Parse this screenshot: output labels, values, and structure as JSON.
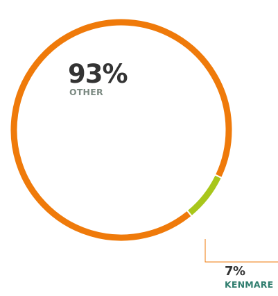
{
  "chart_data": {
    "type": "pie",
    "variant": "donut",
    "slices": [
      {
        "label": "OTHER",
        "value": 93,
        "display": "93%",
        "color": "#EF7A0A",
        "label_color": "#7C8A82"
      },
      {
        "label": "KENMARE",
        "value": 7,
        "display": "7%",
        "color": "#A8C61B",
        "label_color": "#2F7D6E"
      }
    ],
    "leader_color": "#EF7A0A"
  }
}
